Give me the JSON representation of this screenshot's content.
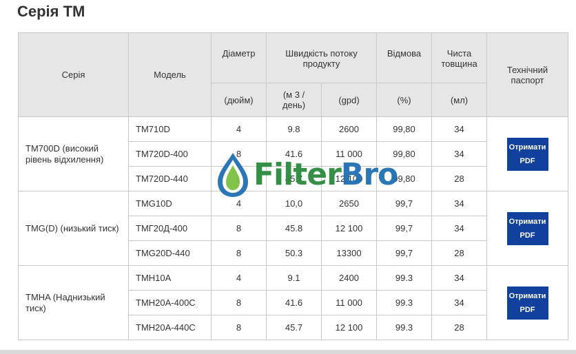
{
  "page": {
    "title": "Серія ТМ"
  },
  "table": {
    "headers": {
      "series": "Серія",
      "model": "Модель",
      "diameter": "Діаметр",
      "flow": "Швидкість потоку продукту",
      "rejection": "Відмова",
      "thickness": "Чиста товщина",
      "datasheet": "Технічний паспорт"
    },
    "units": {
      "diameter": "(дюйм)",
      "flow_m3": "(м 3 / день)",
      "flow_gpd": "(gpd)",
      "rejection": "(%)",
      "thickness": "(мл)"
    },
    "groups": [
      {
        "series": "TM700D (високий рівень відхилення)",
        "button": "Отримати PDF",
        "rows": [
          {
            "model": "TM710D",
            "diameter": "4",
            "m3": "9.8",
            "gpd": "2600",
            "rejection": "99,80",
            "thickness": "34"
          },
          {
            "model": "TM720D-400",
            "diameter": "8",
            "m3": "41.6",
            "gpd": "11 000",
            "rejection": "99,80",
            "thickness": "34"
          },
          {
            "model": "TM720D-440",
            "diameter": "8",
            "m3": "45.7",
            "gpd": "12 100",
            "rejection": "99,80",
            "thickness": "28"
          }
        ]
      },
      {
        "series": "TMG(D) (низький тиск)",
        "button": "Отримати PDF",
        "rows": [
          {
            "model": "TMG10D",
            "diameter": "4",
            "m3": "10,0",
            "gpd": "2650",
            "rejection": "99,7",
            "thickness": "34"
          },
          {
            "model": "TMГ20Д-400",
            "diameter": "8",
            "m3": "45.8",
            "gpd": "12 100",
            "rejection": "99,7",
            "thickness": "34"
          },
          {
            "model": "TMG20D-440",
            "diameter": "8",
            "m3": "50.3",
            "gpd": "13300",
            "rejection": "99,7",
            "thickness": "28"
          }
        ]
      },
      {
        "series": "TMHA (Наднизький тиск)",
        "button": "Отримати PDF",
        "rows": [
          {
            "model": "TMH10A",
            "diameter": "4",
            "m3": "9.1",
            "gpd": "2400",
            "rejection": "99.3",
            "thickness": "34"
          },
          {
            "model": "TMH20A-400C",
            "diameter": "8",
            "m3": "41.6",
            "gpd": "11 000",
            "rejection": "99.3",
            "thickness": "34"
          },
          {
            "model": "TMH20A-440C",
            "diameter": "8",
            "m3": "45.7",
            "gpd": "12 100",
            "rejection": "99.3",
            "thickness": "28"
          }
        ]
      }
    ]
  },
  "watermark": {
    "left": "Filter",
    "right": "Bro"
  },
  "colors": {
    "button_bg": "#12419d",
    "header_bg": "#e6e6e6",
    "logo_green": "#2b8a3e",
    "logo_blue": "#1f6fb3"
  }
}
